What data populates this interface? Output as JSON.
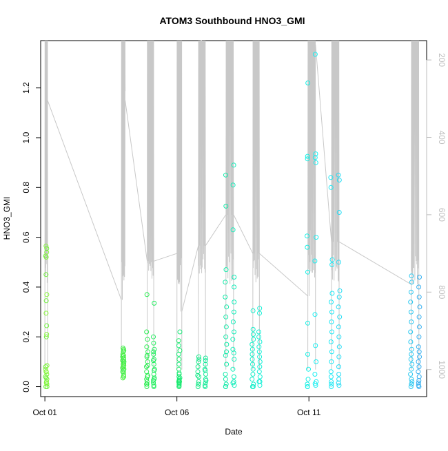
{
  "chart_data": {
    "type": "scatter",
    "title": "ATOM3 Southbound HNO3_GMI",
    "xlabel": "Date",
    "ylabel": "HNO3_GMI",
    "x_ticks": [
      "Oct 01",
      "Oct 06",
      "Oct 11"
    ],
    "y_ticks": [
      "0.0",
      "0.2",
      "0.4",
      "0.6",
      "0.8",
      "1.0",
      "1.2"
    ],
    "right_ticks": [
      "200",
      "400",
      "600",
      "800",
      "1000"
    ],
    "xlim": [
      "2017-09-30T20:10",
      "2017-10-15T11:00"
    ],
    "ylim": [
      -0.04,
      1.39
    ],
    "right_lim": [
      1070,
      150
    ],
    "grid": false,
    "right_axis_color": "#bebebe",
    "line_color": "#c8c8c8",
    "flights": [
      {
        "start": "2017-10-01T00:00",
        "end": "2017-10-01T02:30",
        "colors": [
          "#6ef03c",
          "#86f53a"
        ],
        "ys": [
          0.0,
          0.01,
          0.02,
          0.03,
          0.04,
          0.05,
          0.06,
          0.07,
          0.08,
          0.085,
          0.0,
          0.015,
          0.035,
          0.06,
          0.2,
          0.21,
          0.245,
          0.295,
          0.345,
          0.37,
          0.45,
          0.52,
          0.525,
          0.54,
          0.555,
          0.565
        ],
        "pressure": [
          1000,
          430,
          305,
          305,
          1000
        ]
      },
      {
        "start": "2017-10-03T21:30",
        "end": "2017-10-04T01:00",
        "colors": [
          "#4cf040",
          "#3cec4a"
        ],
        "ys": [
          0.035,
          0.045,
          0.055,
          0.06,
          0.065,
          0.075,
          0.08,
          0.09,
          0.095,
          0.1,
          0.105,
          0.11,
          0.115,
          0.12,
          0.125,
          0.13,
          0.14,
          0.145,
          0.15,
          0.155,
          0.04,
          0.07,
          0.085,
          0.1,
          0.125
        ],
        "pressure": [
          1000,
          820,
          650,
          305,
          280
        ]
      },
      {
        "start": "2017-10-04T21:00",
        "end": "2017-10-05T03:00",
        "colors": [
          "#2aec50",
          "#22ee5e"
        ],
        "ys": [
          0.0,
          0.005,
          0.01,
          0.015,
          0.02,
          0.025,
          0.03,
          0.035,
          0.04,
          0.05,
          0.06,
          0.07,
          0.08,
          0.09,
          0.1,
          0.11,
          0.12,
          0.13,
          0.14,
          0.15,
          0.16,
          0.175,
          0.19,
          0.2,
          0.22,
          0.335,
          0.37,
          0.0,
          0.01,
          0.03,
          0.045,
          0.065,
          0.085,
          0.105,
          0.125,
          0.14
        ],
        "pressure": [
          1000,
          720,
          220,
          160,
          160,
          720,
          1000
        ]
      },
      {
        "start": "2017-10-06T00:00",
        "end": "2017-10-06T04:30",
        "colors": [
          "#1ce868",
          "#18ea78"
        ],
        "ys": [
          0.0,
          0.005,
          0.01,
          0.015,
          0.02,
          0.025,
          0.03,
          0.04,
          0.05,
          0.055,
          0.07,
          0.09,
          0.11,
          0.13,
          0.145,
          0.165,
          0.185,
          0.22,
          0.0,
          0.01,
          0.02,
          0.035
        ],
        "pressure": [
          1000,
          700,
          330,
          300,
          850,
          1000
        ]
      },
      {
        "start": "2017-10-06T19:30",
        "end": "2017-10-07T02:00",
        "colors": [
          "#16e888",
          "#14ea98"
        ],
        "ys": [
          0.0,
          0.005,
          0.01,
          0.015,
          0.02,
          0.03,
          0.04,
          0.05,
          0.06,
          0.07,
          0.08,
          0.09,
          0.1,
          0.105,
          0.11,
          0.115,
          0.12,
          0.0,
          0.01,
          0.025,
          0.045,
          0.065
        ],
        "pressure": [
          1000,
          680,
          150,
          170,
          680,
          1000
        ]
      },
      {
        "start": "2017-10-07T20:30",
        "end": "2017-10-08T03:30",
        "colors": [
          "#12eaa8",
          "#10eeba"
        ],
        "ys": [
          0.0,
          0.005,
          0.01,
          0.02,
          0.03,
          0.04,
          0.05,
          0.07,
          0.09,
          0.11,
          0.125,
          0.135,
          0.14,
          0.15,
          0.17,
          0.19,
          0.2,
          0.22,
          0.24,
          0.26,
          0.28,
          0.3,
          0.32,
          0.34,
          0.36,
          0.4,
          0.42,
          0.44,
          0.47,
          0.63,
          0.725,
          0.81,
          0.85,
          0.89,
          0.0,
          0.015
        ],
        "pressure": [
          1000,
          600,
          170,
          230,
          600,
          1000
        ]
      },
      {
        "start": "2017-10-08T21:00",
        "end": "2017-10-09T03:00",
        "colors": [
          "#10eec8",
          "#10f0d6"
        ],
        "ys": [
          0.0,
          0.005,
          0.01,
          0.02,
          0.03,
          0.04,
          0.05,
          0.06,
          0.07,
          0.08,
          0.09,
          0.1,
          0.11,
          0.12,
          0.13,
          0.14,
          0.15,
          0.16,
          0.17,
          0.18,
          0.19,
          0.2,
          0.21,
          0.22,
          0.23,
          0.295,
          0.305,
          0.315,
          0.0,
          0.02
        ],
        "pressure": [
          1000,
          700,
          230,
          250,
          700,
          1000
        ]
      },
      {
        "start": "2017-10-10T23:00",
        "end": "2017-10-11T06:00",
        "colors": [
          "#12f0e4",
          "#18eef0"
        ],
        "ys": [
          0.0,
          0.005,
          0.01,
          0.02,
          0.03,
          0.05,
          0.07,
          0.1,
          0.13,
          0.165,
          0.255,
          0.29,
          0.46,
          0.505,
          0.56,
          0.6,
          0.605,
          0.9,
          0.915,
          0.92,
          0.925,
          0.935,
          1.22,
          1.335,
          0.0,
          0.012
        ],
        "pressure": [
          1000,
          810,
          640,
          300,
          160,
          160,
          1000
        ]
      },
      {
        "start": "2017-10-11T20:30",
        "end": "2017-10-12T03:30",
        "colors": [
          "#1ce8f4",
          "#22dcf4"
        ],
        "ys": [
          0.0,
          0.005,
          0.01,
          0.015,
          0.02,
          0.03,
          0.04,
          0.05,
          0.06,
          0.08,
          0.1,
          0.12,
          0.14,
          0.16,
          0.18,
          0.2,
          0.22,
          0.24,
          0.26,
          0.28,
          0.3,
          0.32,
          0.34,
          0.36,
          0.375,
          0.385,
          0.49,
          0.5,
          0.51,
          0.7,
          0.8,
          0.83,
          0.84,
          0.85
        ],
        "pressure": [
          1000,
          670,
          310,
          400,
          670,
          1000
        ]
      },
      {
        "start": "2017-10-14T21:00",
        "end": "2017-10-15T04:00",
        "colors": [
          "#2ac8f0",
          "#30aef0"
        ],
        "ys": [
          0.0,
          0.005,
          0.01,
          0.015,
          0.02,
          0.025,
          0.03,
          0.04,
          0.05,
          0.06,
          0.07,
          0.08,
          0.09,
          0.1,
          0.11,
          0.12,
          0.13,
          0.14,
          0.15,
          0.16,
          0.18,
          0.2,
          0.22,
          0.24,
          0.26,
          0.28,
          0.3,
          0.32,
          0.34,
          0.36,
          0.38,
          0.4,
          0.42,
          0.44,
          0.445,
          0.0,
          0.01
        ],
        "pressure": [
          1000,
          780,
          350,
          180,
          780,
          1000
        ]
      }
    ]
  }
}
